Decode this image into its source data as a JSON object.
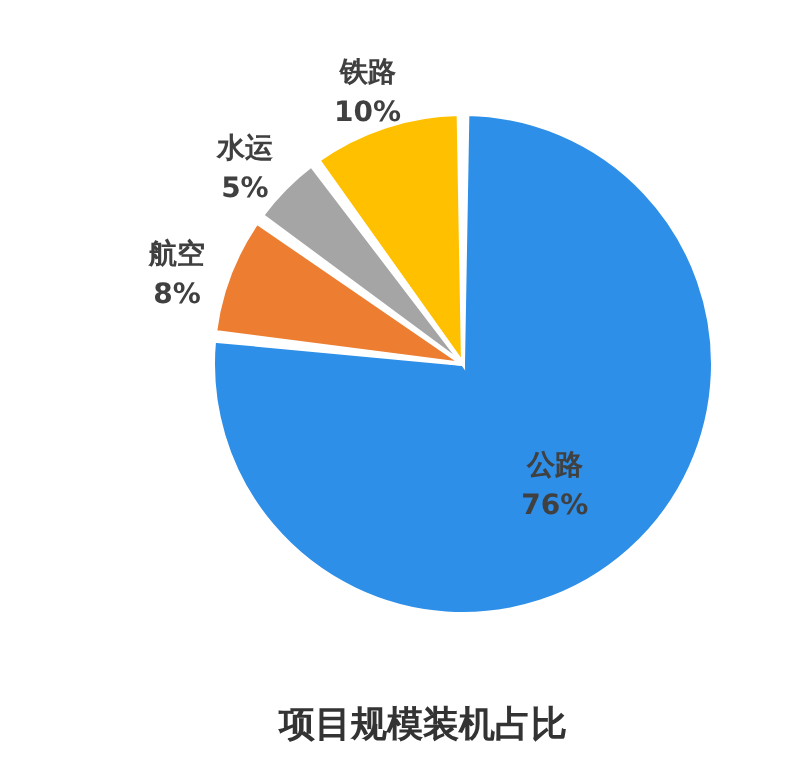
{
  "chart_data": {
    "type": "pie",
    "title": "项目规模装机占比",
    "categories": [
      "公路",
      "航空",
      "水运",
      "铁路"
    ],
    "values": [
      76,
      8,
      5,
      10
    ],
    "colors": [
      "#2e8fe8",
      "#ed7d31",
      "#a5a5a5",
      "#ffc000"
    ],
    "value_labels": [
      "76%",
      "8%",
      "5%",
      "10%"
    ]
  }
}
